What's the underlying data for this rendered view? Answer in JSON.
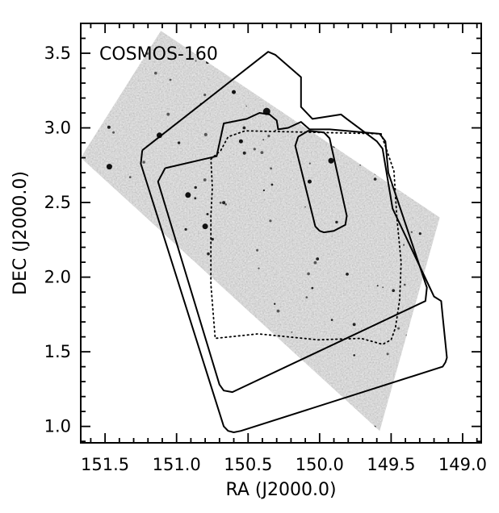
{
  "chart_data": {
    "type": "map",
    "title": "COSMOS-160",
    "xlabel": "RA (J2000.0)",
    "ylabel": "DEC (J2000.0)",
    "xlim": [
      151.67,
      148.87
    ],
    "ylim": [
      0.89,
      3.7
    ],
    "x_ticks": [
      151.5,
      151.0,
      150.5,
      150.0,
      149.5,
      149.0
    ],
    "x_tick_labels": [
      "151.5",
      "151.0",
      "150.5",
      "150.0",
      "149.5",
      "149.0"
    ],
    "y_ticks": [
      1.0,
      1.5,
      2.0,
      2.5,
      3.0,
      3.5
    ],
    "y_tick_labels": [
      "1.0",
      "1.5",
      "2.0",
      "2.5",
      "3.0",
      "3.5"
    ],
    "grid": false,
    "background": "grayscale noise map",
    "survey_footprint": [
      [
        151.67,
        2.8
      ],
      [
        151.11,
        3.65
      ],
      [
        149.16,
        2.4
      ],
      [
        149.58,
        0.97
      ]
    ],
    "contours": [
      {
        "name": "outer",
        "style": "solid",
        "points": [
          [
            151.24,
            2.85
          ],
          [
            150.36,
            3.51
          ],
          [
            150.31,
            3.49
          ],
          [
            150.13,
            3.34
          ],
          [
            150.13,
            3.14
          ],
          [
            150.05,
            3.06
          ],
          [
            149.85,
            3.09
          ],
          [
            149.81,
            3.06
          ],
          [
            149.6,
            2.91
          ],
          [
            149.56,
            2.86
          ],
          [
            149.49,
            2.46
          ],
          [
            149.2,
            1.87
          ],
          [
            149.15,
            1.84
          ],
          [
            149.14,
            1.74
          ],
          [
            149.11,
            1.46
          ],
          [
            149.12,
            1.43
          ],
          [
            149.14,
            1.4
          ],
          [
            150.55,
            0.97
          ],
          [
            150.6,
            0.96
          ],
          [
            150.64,
            0.97
          ],
          [
            150.67,
            1.0
          ],
          [
            151.25,
            2.76
          ],
          [
            151.24,
            2.85
          ]
        ]
      },
      {
        "name": "inner",
        "style": "solid",
        "points": [
          [
            151.08,
            2.73
          ],
          [
            150.72,
            2.81
          ],
          [
            150.67,
            3.03
          ],
          [
            150.51,
            3.06
          ],
          [
            150.42,
            3.1
          ],
          [
            150.35,
            3.09
          ],
          [
            150.3,
            3.05
          ],
          [
            150.29,
            2.99
          ],
          [
            150.22,
            3.0
          ],
          [
            150.13,
            3.04
          ],
          [
            150.07,
            2.99
          ],
          [
            149.93,
            2.99
          ],
          [
            149.58,
            2.96
          ],
          [
            149.54,
            2.91
          ],
          [
            149.52,
            2.7
          ],
          [
            149.25,
            1.93
          ],
          [
            149.26,
            1.84
          ],
          [
            150.61,
            1.23
          ],
          [
            150.67,
            1.24
          ],
          [
            150.7,
            1.28
          ],
          [
            151.13,
            2.64
          ],
          [
            151.08,
            2.73
          ]
        ]
      },
      {
        "name": "deep",
        "style": "solid",
        "points": [
          [
            150.15,
            2.94
          ],
          [
            150.08,
            2.98
          ],
          [
            149.97,
            2.97
          ],
          [
            149.93,
            2.93
          ],
          [
            149.81,
            2.41
          ],
          [
            149.82,
            2.35
          ],
          [
            149.9,
            2.31
          ],
          [
            149.97,
            2.3
          ],
          [
            150.0,
            2.31
          ],
          [
            150.03,
            2.34
          ],
          [
            150.17,
            2.88
          ],
          [
            150.15,
            2.94
          ]
        ]
      },
      {
        "name": "dotted",
        "style": "dotted",
        "points": [
          [
            150.76,
            2.79
          ],
          [
            150.69,
            2.85
          ],
          [
            150.64,
            2.94
          ],
          [
            150.52,
            2.98
          ],
          [
            149.57,
            2.96
          ],
          [
            149.48,
            2.71
          ],
          [
            149.46,
            2.4
          ],
          [
            149.43,
            2.1
          ],
          [
            149.44,
            1.85
          ],
          [
            149.47,
            1.66
          ],
          [
            149.5,
            1.58
          ],
          [
            149.56,
            1.55
          ],
          [
            149.71,
            1.59
          ],
          [
            150.01,
            1.58
          ],
          [
            150.43,
            1.62
          ],
          [
            150.73,
            1.59
          ],
          [
            150.76,
            1.95
          ],
          [
            150.76,
            2.41
          ],
          [
            150.75,
            2.6
          ],
          [
            150.76,
            2.79
          ]
        ]
      }
    ],
    "bright_sources": [
      [
        150.2,
        3.33
      ],
      [
        150.37,
        3.11
      ],
      [
        150.26,
        3.18
      ],
      [
        149.92,
        2.78
      ],
      [
        151.12,
        2.95
      ],
      [
        150.92,
        2.55
      ],
      [
        150.8,
        2.34
      ],
      [
        151.47,
        2.74
      ],
      [
        149.2,
        1.73
      ],
      [
        149.12,
        1.44
      ],
      [
        150.32,
        1.6
      ],
      [
        150.6,
        3.24
      ],
      [
        150.55,
        2.91
      ],
      [
        149.4,
        2.92
      ],
      [
        150.07,
        2.64
      ]
    ]
  }
}
